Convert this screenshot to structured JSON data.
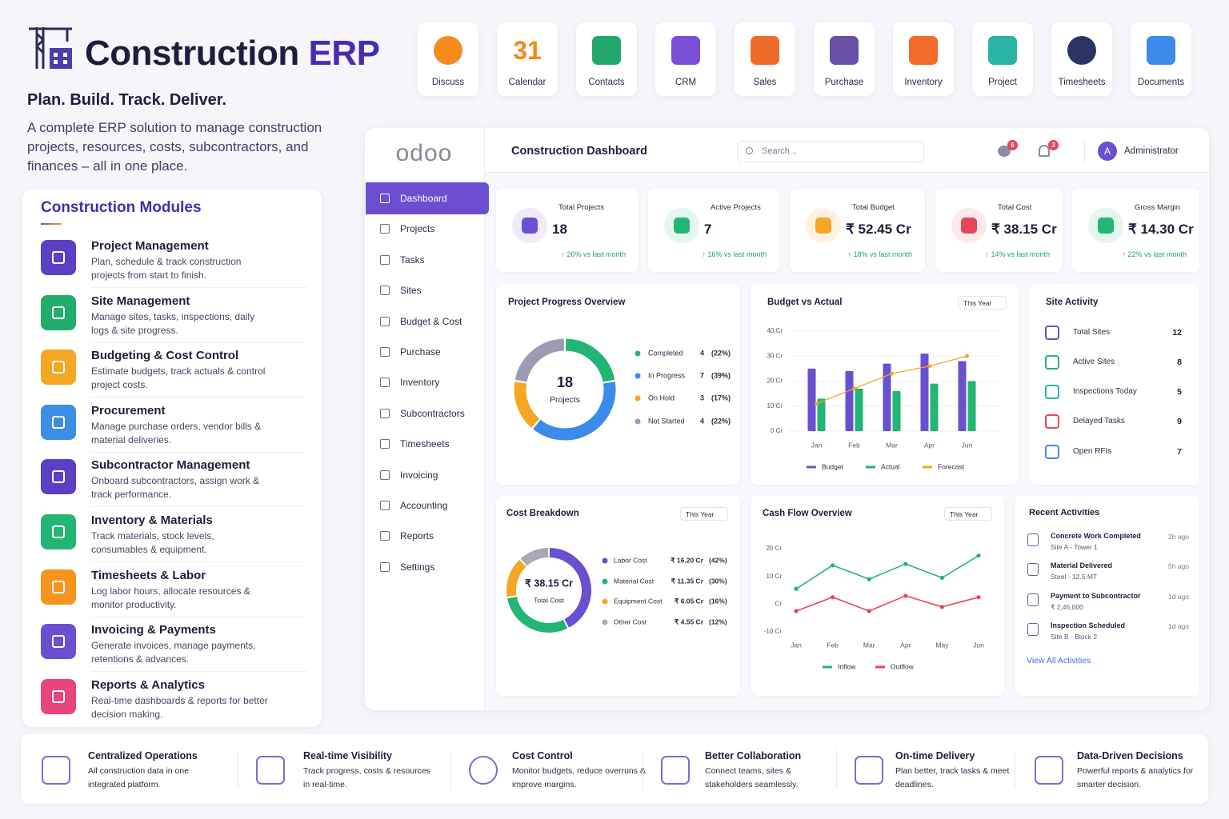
{
  "header": {
    "title_main": "Construction",
    "title_accent": "ERP",
    "tagline": "Plan. Build. Track. Deliver.",
    "description": "A complete ERP solution to manage construction projects, resources, costs, subcontractors, and finances – all in one place."
  },
  "apps": [
    {
      "label": "Discuss"
    },
    {
      "label": "Calendar",
      "icon_text": "31"
    },
    {
      "label": "Contacts"
    },
    {
      "label": "CRM"
    },
    {
      "label": "Sales"
    },
    {
      "label": "Purchase"
    },
    {
      "label": "Inventory"
    },
    {
      "label": "Project"
    },
    {
      "label": "Timesheets"
    },
    {
      "label": "Documents"
    }
  ],
  "modules": {
    "title": "Construction Modules",
    "items": [
      {
        "title": "Project Management",
        "description": "Plan, schedule & track construction projects from start to finish."
      },
      {
        "title": "Site Management",
        "description": "Manage sites, tasks, inspections, daily logs & site progress."
      },
      {
        "title": "Budgeting & Cost Control",
        "description": "Estimate budgets, track actuals & control project costs."
      },
      {
        "title": "Procurement",
        "description": "Manage purchase orders, vendor bills & material deliveries."
      },
      {
        "title": "Subcontractor Management",
        "description": "Onboard subcontractors, assign work & track performance."
      },
      {
        "title": "Inventory & Materials",
        "description": "Track materials, stock levels, consumables & equipment."
      },
      {
        "title": "Timesheets & Labor",
        "description": "Log labor hours, allocate resources & monitor productivity."
      },
      {
        "title": "Invoicing & Payments",
        "description": "Generate invoices, manage payments, retentions & advances."
      },
      {
        "title": "Reports & Analytics",
        "description": "Real-time dashboards & reports for better decision making."
      }
    ]
  },
  "sidebar": {
    "logo": "odoo",
    "active": 0,
    "items": [
      "Dashboard",
      "Projects",
      "Tasks",
      "Sites",
      "Budget & Cost",
      "Purchase",
      "Inventory",
      "Subcontractors",
      "Timesheets",
      "Invoicing",
      "Accounting",
      "Reports",
      "Settings"
    ]
  },
  "topbar": {
    "title": "Construction Dashboard",
    "search_placeholder": "Search...",
    "chat_badge": "6",
    "bell_badge": "3",
    "avatar": "A",
    "user": "Administrator"
  },
  "kpis": [
    {
      "label": "Total Projects",
      "value": "18",
      "change": "↑ 20% vs last month"
    },
    {
      "label": "Active Projects",
      "value": "7",
      "change": "↑ 16% vs last month"
    },
    {
      "label": "Total Budget",
      "value": "₹ 52.45 Cr",
      "change": "↑ 18% vs last month"
    },
    {
      "label": "Total Cost",
      "value": "₹ 38.15 Cr",
      "change": "↑ 14% vs last month"
    },
    {
      "label": "Gross Margin",
      "value": "₹ 14.30 Cr",
      "change": "↑ 22% vs last month"
    }
  ],
  "site_activity": {
    "title": "Site Activity",
    "items": [
      {
        "label": "Total Sites",
        "value": "12"
      },
      {
        "label": "Active Sites",
        "value": "8"
      },
      {
        "label": "Inspections Today",
        "value": "5"
      },
      {
        "label": "Delayed Tasks",
        "value": "9"
      },
      {
        "label": "Open RFIs",
        "value": "7"
      }
    ]
  },
  "recent_activities": {
    "title": "Recent Activities",
    "link": "View All Activities",
    "items": [
      {
        "title": "Concrete Work Completed",
        "subtitle": "Site A - Tower 1",
        "time": "2h ago"
      },
      {
        "title": "Material Delivered",
        "subtitle": "Steel - 12.5 MT",
        "time": "5h ago"
      },
      {
        "title": "Payment to Subcontractor",
        "subtitle": "₹ 2,45,000",
        "time": "1d ago"
      },
      {
        "title": "Inspection Scheduled",
        "subtitle": "Site B - Block 2",
        "time": "1d ago"
      }
    ]
  },
  "features": [
    {
      "title": "Centralized Operations",
      "description": "All construction data in one integrated platform."
    },
    {
      "title": "Real-time Visibility",
      "description": "Track progress, costs & resources in real-time."
    },
    {
      "title": "Cost Control",
      "description": "Monitor budgets, reduce overruns & improve margins."
    },
    {
      "title": "Better Collaboration",
      "description": "Connect teams, sites & stakeholders seamlessly."
    },
    {
      "title": "On-time Delivery",
      "description": "Plan better, track tasks & meet deadlines."
    },
    {
      "title": "Data-Driven Decisions",
      "description": "Powerful reports & analytics for smarter decision."
    }
  ],
  "chart_data": [
    {
      "type": "donut",
      "title": "Project Progress Overview",
      "center_value": 18,
      "center_label": "Projects",
      "categories": [
        "Completed",
        "In Progress",
        "On Hold",
        "Not Started"
      ],
      "values": [
        4,
        7,
        3,
        4
      ],
      "percent_labels": [
        "(22%)",
        "(39%)",
        "(17%)",
        "(22%)"
      ],
      "colors": [
        "#22b573",
        "#3b8bea",
        "#f5a623",
        "#9d9ab5"
      ]
    },
    {
      "type": "bar",
      "title": "Budget vs Actual",
      "range_selector": "This Year",
      "categories": [
        "Jan",
        "Feb",
        "Mar",
        "Apr",
        "Jun"
      ],
      "series": [
        {
          "name": "Budget",
          "color": "#6a4fd0",
          "values": [
            25,
            24,
            27,
            31,
            28
          ]
        },
        {
          "name": "Actual",
          "color": "#22b573",
          "values": [
            13,
            17,
            16,
            19,
            20
          ]
        },
        {
          "name": "Forecast",
          "color": "#f5a623",
          "type": "line",
          "values": [
            11,
            17,
            23,
            26,
            30
          ]
        }
      ],
      "ylim": [
        0,
        40
      ],
      "yticks": [
        {
          "value": 0,
          "label": "0 Cr"
        },
        {
          "value": 10,
          "label": "10 Cr"
        },
        {
          "value": 20,
          "label": "20 Cr"
        },
        {
          "value": 30,
          "label": "30 Cr"
        },
        {
          "value": 40,
          "label": "40 Cr"
        }
      ],
      "grid": true
    },
    {
      "type": "donut",
      "title": "Cost Breakdown",
      "range_selector": "This Year",
      "center_value": "₹ 38.15 Cr",
      "center_label": "Total Cost",
      "categories": [
        "Labor Cost",
        "Material Cost",
        "Equipment Cost",
        "Other Cost"
      ],
      "values": [
        16.2,
        11.35,
        6.05,
        4.55
      ],
      "value_labels": [
        "₹ 16.20 Cr",
        "₹ 11.35 Cr",
        "₹ 6.05 Cr",
        "₹ 4.55 Cr"
      ],
      "percent_labels": [
        "(42%)",
        "(30%)",
        "(16%)",
        "(12%)"
      ],
      "colors": [
        "#6a4fd0",
        "#22b573",
        "#f5a623",
        "#a7a9b8"
      ]
    },
    {
      "type": "line",
      "title": "Cash Flow Overview",
      "range_selector": "This Year",
      "categories": [
        "Jan",
        "Feb",
        "Mar",
        "Apr",
        "May",
        "Jun"
      ],
      "series": [
        {
          "name": "Inflow",
          "color": "#22b573",
          "values": [
            5.5,
            14,
            9,
            14.5,
            9.5,
            17.5
          ]
        },
        {
          "name": "Outflow",
          "color": "#e8455a",
          "values": [
            -2.5,
            2.5,
            -2.5,
            3,
            -1,
            2.5
          ]
        }
      ],
      "ylim": [
        -10,
        20
      ],
      "yticks": [
        {
          "value": -10,
          "label": "-10 Cr"
        },
        {
          "value": 0,
          "label": "Cr"
        },
        {
          "value": 10,
          "label": "10 Cr"
        },
        {
          "value": 20,
          "label": "20 Cr"
        }
      ],
      "grid": false
    }
  ]
}
